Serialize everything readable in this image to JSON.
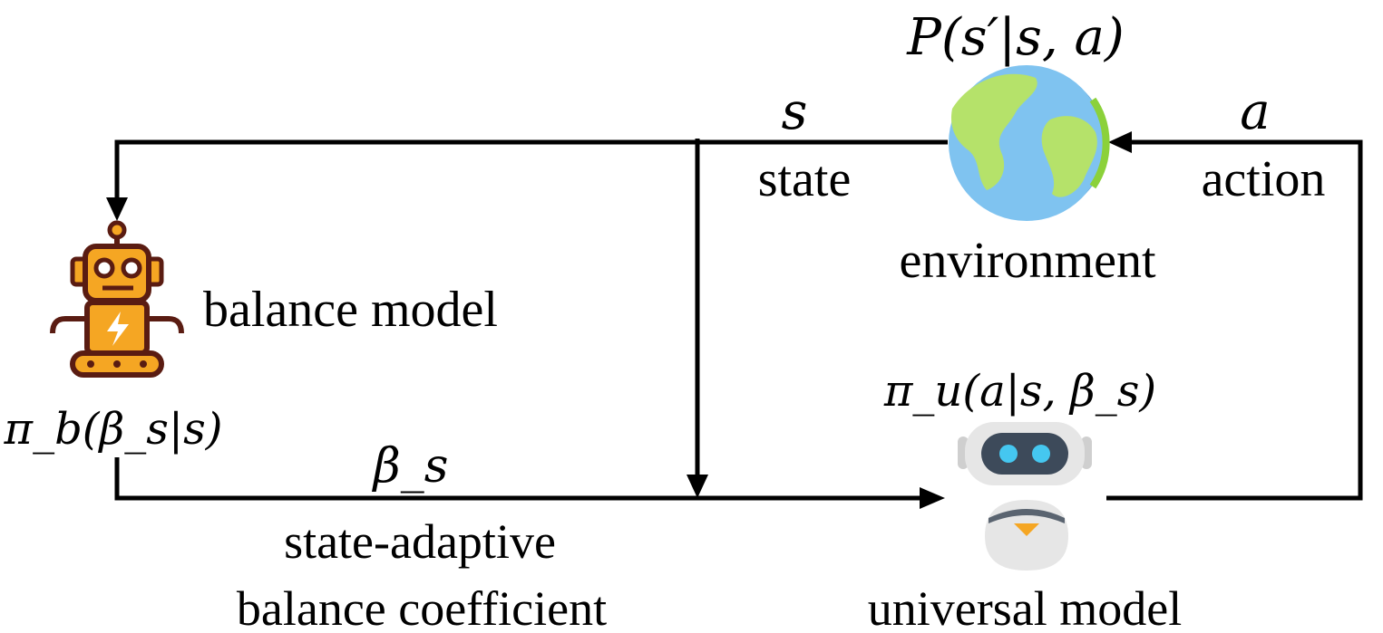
{
  "environment": {
    "formula": "P(s′|s, a)",
    "label": "environment"
  },
  "state_edge": {
    "symbol": "s",
    "label": "state"
  },
  "action_edge": {
    "symbol": "a",
    "label": "action"
  },
  "balance_model": {
    "label": "balance model",
    "policy": "π_b(β_s|s)"
  },
  "coefficient_edge": {
    "symbol": "β_s",
    "label_line1": "state-adaptive",
    "label_line2": "balance coefficient"
  },
  "universal_model": {
    "policy": "π_u(a|s, β_s)",
    "label": "universal model"
  },
  "colors": {
    "globe_water": "#7fc3f0",
    "globe_land": "#b5e26a",
    "robot_body": "#f5a623",
    "robot_outline": "#5a1c12",
    "bot_shell": "#e6e6e6",
    "bot_screen": "#3d4a5a",
    "bot_eye": "#45c7f0",
    "bot_accent": "#f5a623"
  }
}
